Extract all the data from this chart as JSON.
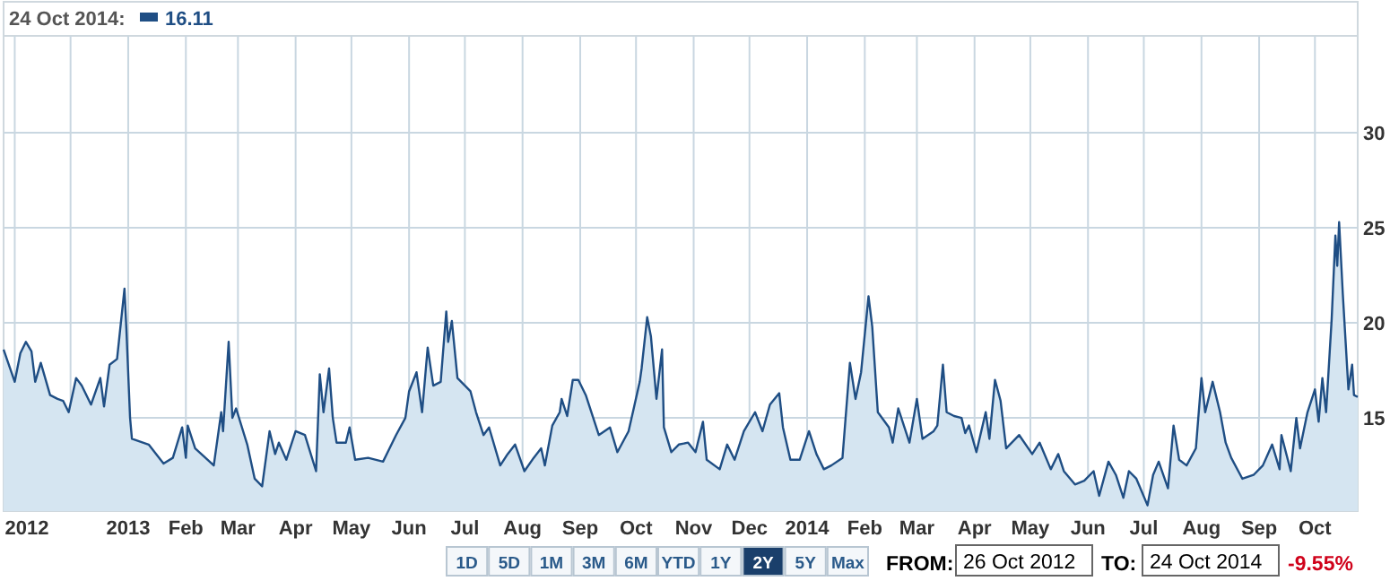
{
  "chart_data": {
    "type": "area",
    "xlim": [
      "2012-10-26",
      "2014-10-24"
    ],
    "ylim": [
      10.1,
      35.1
    ],
    "yticks": [
      15,
      20,
      25,
      30
    ],
    "grid": true,
    "xticks": [
      {
        "value": "2012-11-01",
        "label": "2012"
      },
      {
        "value": "2012-12-01",
        "label": null
      },
      {
        "value": "2013-01-01",
        "label": "2013"
      },
      {
        "value": "2013-02-01",
        "label": "Feb"
      },
      {
        "value": "2013-03-01",
        "label": "Mar"
      },
      {
        "value": "2013-04-01",
        "label": "Apr"
      },
      {
        "value": "2013-05-01",
        "label": "May"
      },
      {
        "value": "2013-06-01",
        "label": "Jun"
      },
      {
        "value": "2013-07-01",
        "label": "Jul"
      },
      {
        "value": "2013-08-01",
        "label": "Aug"
      },
      {
        "value": "2013-09-01",
        "label": "Sep"
      },
      {
        "value": "2013-10-01",
        "label": "Oct"
      },
      {
        "value": "2013-11-01",
        "label": "Nov"
      },
      {
        "value": "2013-12-01",
        "label": "Dec"
      },
      {
        "value": "2014-01-01",
        "label": "2014"
      },
      {
        "value": "2014-02-01",
        "label": "Feb"
      },
      {
        "value": "2014-03-01",
        "label": "Mar"
      },
      {
        "value": "2014-04-01",
        "label": "Apr"
      },
      {
        "value": "2014-05-01",
        "label": "May"
      },
      {
        "value": "2014-06-01",
        "label": "Jun"
      },
      {
        "value": "2014-07-01",
        "label": "Jul"
      },
      {
        "value": "2014-08-01",
        "label": "Aug"
      },
      {
        "value": "2014-09-01",
        "label": "Sep"
      },
      {
        "value": "2014-10-01",
        "label": "Oct"
      }
    ],
    "annotations": [
      "24 Oct 2014:",
      "16.11",
      "1D",
      "5D",
      "1M",
      "3M",
      "6M",
      "YTD",
      "1Y",
      "2Y",
      "5Y",
      "Max",
      "FROM:",
      "26 Oct 2012",
      "TO:",
      "24 Oct 2014",
      "-9.55%"
    ],
    "series": [
      {
        "color": "#1f4e84",
        "x": [
          "2012-10-26",
          "2012-11-01",
          "2012-11-04",
          "2012-11-07",
          "2012-11-10",
          "2012-11-12",
          "2012-11-15",
          "2012-11-20",
          "2012-11-24",
          "2012-11-27",
          "2012-11-30",
          "2012-12-04",
          "2012-12-07",
          "2012-12-12",
          "2012-12-17",
          "2012-12-19",
          "2012-12-22",
          "2012-12-26",
          "2012-12-30",
          "2012-12-31",
          "2013-01-02",
          "2013-01-03",
          "2013-01-12",
          "2013-01-20",
          "2013-01-25",
          "2013-01-30",
          "2013-02-01",
          "2013-02-02",
          "2013-02-06",
          "2013-02-16",
          "2013-02-20",
          "2013-02-21",
          "2013-02-24",
          "2013-02-26",
          "2013-02-28",
          "2013-03-06",
          "2013-03-10",
          "2013-03-14",
          "2013-03-18",
          "2013-03-21",
          "2013-03-23",
          "2013-03-27",
          "2013-04-01",
          "2013-04-06",
          "2013-04-12",
          "2013-04-14",
          "2013-04-16",
          "2013-04-19",
          "2013-04-21",
          "2013-04-23",
          "2013-04-28",
          "2013-04-30",
          "2013-05-03",
          "2013-05-10",
          "2013-05-18",
          "2013-05-25",
          "2013-05-30",
          "2013-06-01",
          "2013-06-05",
          "2013-06-08",
          "2013-06-11",
          "2013-06-14",
          "2013-06-18",
          "2013-06-21",
          "2013-06-22",
          "2013-06-24",
          "2013-06-27",
          "2013-07-04",
          "2013-07-07",
          "2013-07-11",
          "2013-07-14",
          "2013-07-20",
          "2013-07-24",
          "2013-07-28",
          "2013-08-02",
          "2013-08-07",
          "2013-08-11",
          "2013-08-13",
          "2013-08-17",
          "2013-08-21",
          "2013-08-22",
          "2013-08-25",
          "2013-08-28",
          "2013-08-31",
          "2013-09-04",
          "2013-09-11",
          "2013-09-17",
          "2013-09-21",
          "2013-09-27",
          "2013-09-30",
          "2013-10-03",
          "2013-10-04",
          "2013-10-07",
          "2013-10-09",
          "2013-10-12",
          "2013-10-15",
          "2013-10-16",
          "2013-10-20",
          "2013-10-24",
          "2013-10-29",
          "2013-11-02",
          "2013-11-06",
          "2013-11-08",
          "2013-11-15",
          "2013-11-19",
          "2013-11-23",
          "2013-11-28",
          "2013-12-04",
          "2013-12-08",
          "2013-12-12",
          "2013-12-17",
          "2013-12-19",
          "2013-12-23",
          "2013-12-28",
          "2014-01-02",
          "2014-01-06",
          "2014-01-10",
          "2014-01-14",
          "2014-01-20",
          "2014-01-24",
          "2014-01-27",
          "2014-01-30",
          "2014-02-03",
          "2014-02-05",
          "2014-02-08",
          "2014-02-14",
          "2014-02-16",
          "2014-02-19",
          "2014-02-25",
          "2014-03-01",
          "2014-03-04",
          "2014-03-10",
          "2014-03-12",
          "2014-03-15",
          "2014-03-17",
          "2014-03-21",
          "2014-03-25",
          "2014-03-27",
          "2014-03-29",
          "2014-04-02",
          "2014-04-07",
          "2014-04-09",
          "2014-04-12",
          "2014-04-15",
          "2014-04-18",
          "2014-04-25",
          "2014-05-02",
          "2014-05-06",
          "2014-05-12",
          "2014-05-16",
          "2014-05-19",
          "2014-05-25",
          "2014-05-30",
          "2014-06-04",
          "2014-06-07",
          "2014-06-12",
          "2014-06-16",
          "2014-06-20",
          "2014-06-23",
          "2014-06-27",
          "2014-07-03",
          "2014-07-06",
          "2014-07-09",
          "2014-07-14",
          "2014-07-17",
          "2014-07-20",
          "2014-07-24",
          "2014-07-29",
          "2014-08-01",
          "2014-08-03",
          "2014-08-07",
          "2014-08-11",
          "2014-08-14",
          "2014-08-17",
          "2014-08-23",
          "2014-08-29",
          "2014-09-03",
          "2014-09-08",
          "2014-09-12",
          "2014-09-13",
          "2014-09-18",
          "2014-09-21",
          "2014-09-23",
          "2014-09-27",
          "2014-10-01",
          "2014-10-03",
          "2014-10-05",
          "2014-10-07",
          "2014-10-10",
          "2014-10-12",
          "2014-10-13",
          "2014-10-14",
          "2014-10-16",
          "2014-10-19",
          "2014-10-21",
          "2014-10-22",
          "2014-10-24"
        ],
        "values": [
          18.6,
          16.9,
          18.4,
          19.0,
          18.5,
          16.9,
          17.9,
          16.2,
          16.0,
          15.9,
          15.3,
          17.1,
          16.7,
          15.7,
          17.1,
          15.6,
          17.8,
          18.1,
          21.8,
          19.7,
          15.0,
          13.9,
          13.6,
          12.6,
          12.9,
          14.5,
          12.9,
          14.6,
          13.4,
          12.5,
          15.3,
          14.3,
          19.0,
          15.0,
          15.5,
          13.6,
          11.8,
          11.4,
          14.3,
          13.1,
          13.7,
          12.8,
          14.3,
          14.1,
          12.2,
          17.3,
          15.3,
          17.6,
          15.0,
          13.7,
          13.7,
          14.5,
          12.8,
          12.9,
          12.7,
          14.1,
          15.0,
          16.4,
          17.4,
          15.3,
          18.7,
          16.7,
          16.9,
          20.6,
          19.0,
          20.1,
          17.1,
          16.4,
          15.3,
          14.1,
          14.5,
          12.5,
          13.1,
          13.6,
          12.2,
          12.9,
          13.4,
          12.5,
          14.6,
          15.3,
          16.0,
          15.1,
          17.0,
          17.0,
          16.2,
          14.1,
          14.5,
          13.2,
          14.3,
          15.6,
          16.9,
          17.6,
          20.3,
          19.3,
          16.0,
          18.6,
          14.5,
          13.2,
          13.6,
          13.7,
          13.2,
          14.8,
          12.8,
          12.3,
          13.6,
          12.8,
          14.3,
          15.3,
          14.3,
          15.7,
          16.3,
          14.5,
          12.8,
          12.8,
          14.3,
          13.1,
          12.3,
          12.5,
          12.9,
          17.9,
          16.0,
          17.4,
          21.4,
          19.8,
          15.3,
          14.5,
          13.7,
          15.5,
          13.7,
          16.0,
          13.9,
          14.3,
          14.6,
          17.8,
          15.3,
          15.1,
          15.0,
          14.2,
          14.6,
          13.2,
          15.3,
          13.9,
          17.0,
          15.9,
          13.4,
          14.1,
          13.1,
          13.7,
          12.3,
          13.1,
          12.2,
          11.5,
          11.7,
          12.2,
          10.9,
          12.7,
          12.0,
          10.8,
          12.2,
          11.8,
          10.4,
          12.0,
          12.7,
          11.3,
          14.6,
          12.8,
          12.5,
          13.4,
          17.1,
          15.3,
          16.9,
          15.3,
          13.7,
          12.9,
          11.8,
          12.0,
          12.5,
          13.6,
          12.3,
          14.1,
          12.2,
          15.0,
          13.4,
          15.3,
          16.5,
          14.8,
          17.1,
          15.3,
          20.2,
          24.6,
          23.0,
          25.3,
          21.5,
          16.5,
          17.8,
          16.2,
          16.1
        ]
      }
    ]
  }
}
